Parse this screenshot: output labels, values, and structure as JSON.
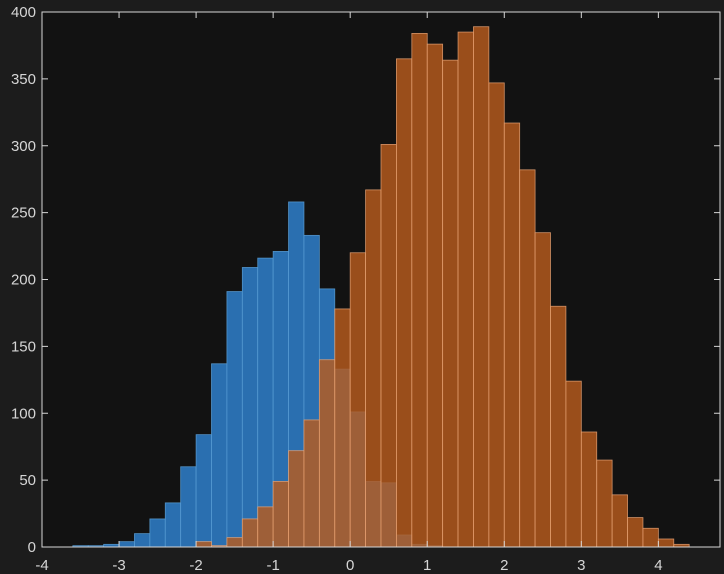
{
  "chart_data": {
    "type": "bar",
    "subtype": "overlapping-histogram",
    "title": "",
    "xlabel": "",
    "ylabel": "",
    "xlim": [
      -4,
      4.8
    ],
    "ylim": [
      0,
      400
    ],
    "xticks": [
      -4,
      -3,
      -2,
      -1,
      0,
      1,
      2,
      3,
      4
    ],
    "yticks": [
      0,
      50,
      100,
      150,
      200,
      250,
      300,
      350,
      400
    ],
    "grid": false,
    "background": "#121212",
    "figure_background": "#1c1c1c",
    "axis_color": "#d6d6d6",
    "bin_edges": [
      -3.6,
      -3.4,
      -3.2,
      -3.0,
      -2.8,
      -2.6,
      -2.4,
      -2.2,
      -2.0,
      -1.8,
      -1.6,
      -1.4,
      -1.2,
      -1.0,
      -0.8,
      -0.6,
      -0.4,
      -0.2,
      0.0,
      0.2,
      0.4,
      0.6,
      0.8,
      1.0,
      1.2,
      1.4,
      1.6,
      1.8,
      2.0,
      2.2,
      2.4,
      2.6,
      2.8,
      3.0,
      3.2,
      3.4,
      3.6,
      3.8,
      4.0,
      4.2,
      4.4
    ],
    "series": [
      {
        "color": "#2a6fb0",
        "edge_color": "#5a9fd6",
        "opacity": 1,
        "counts": [
          1,
          1,
          2,
          4,
          10,
          21,
          33,
          60,
          84,
          137,
          191,
          209,
          216,
          221,
          258,
          233,
          193,
          133,
          101,
          49,
          48,
          9,
          2,
          1,
          0,
          0,
          0,
          0,
          0,
          0,
          0,
          0,
          0,
          0,
          0,
          0,
          0,
          0,
          0,
          0
        ]
      },
      {
        "color": "#b85c1d",
        "edge_color": "#e6a274",
        "opacity": 0.82,
        "counts": [
          0,
          0,
          0,
          0,
          0,
          0,
          0,
          0,
          4,
          1,
          7,
          21,
          30,
          49,
          72,
          95,
          140,
          178,
          220,
          267,
          301,
          365,
          384,
          376,
          364,
          385,
          389,
          347,
          317,
          282,
          235,
          180,
          124,
          86,
          65,
          39,
          22,
          14,
          6,
          2
        ]
      }
    ]
  }
}
